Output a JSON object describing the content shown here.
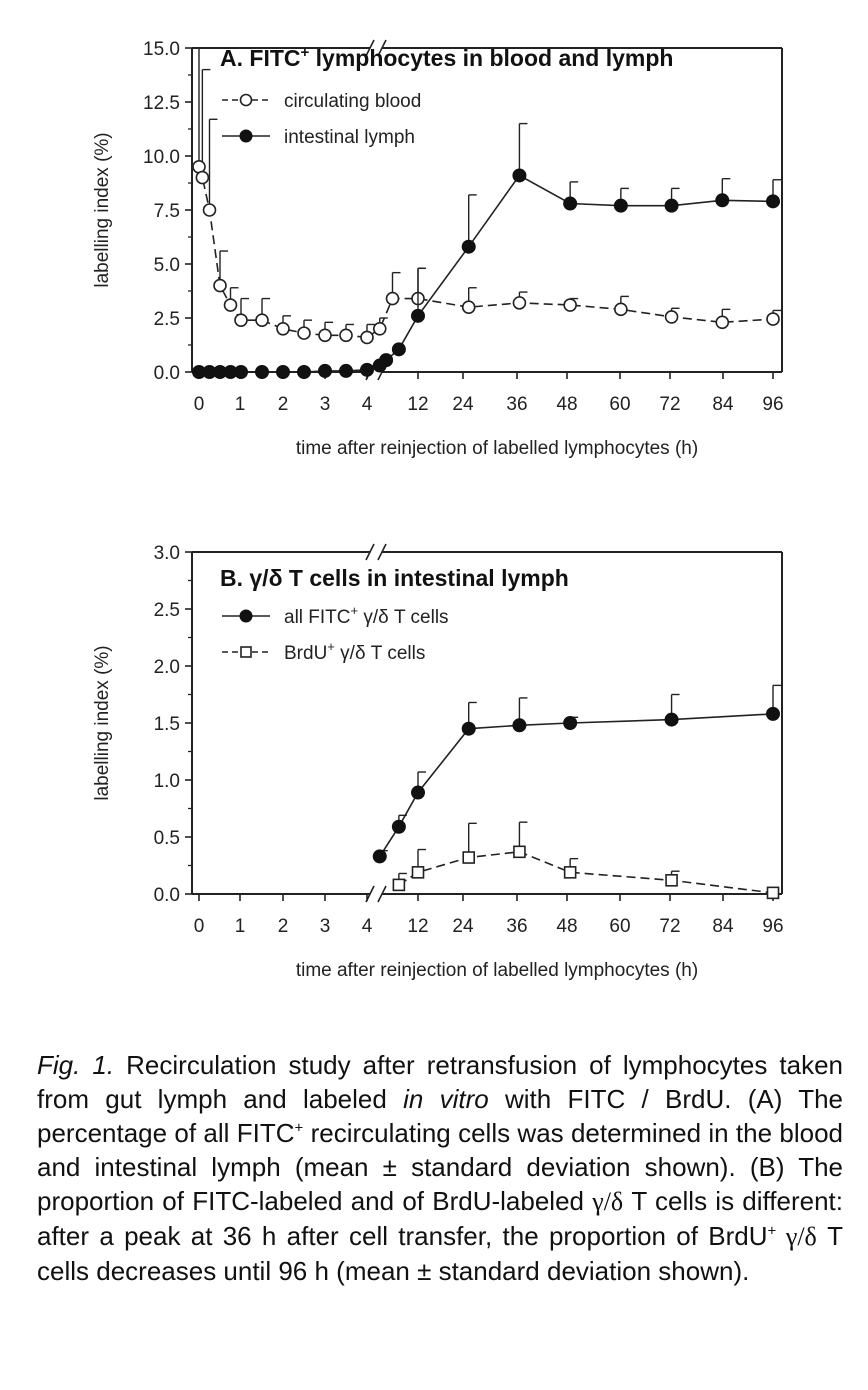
{
  "chart_data": [
    {
      "type": "line",
      "title": "A. FITC",
      "title_sup": "+",
      "title_rest": " lymphocytes in blood and lymph",
      "ylabel": "labelling index (%)",
      "xlabel": "time after reinjection of labelled lymphocytes (h)",
      "ylim": [
        0,
        15.0
      ],
      "yticks": [
        "0.0",
        "2.5",
        "5.0",
        "7.5",
        "10.0",
        "12.5",
        "15.0"
      ],
      "xticks": [
        "0",
        "1",
        "2",
        "3",
        "4",
        "12",
        "24",
        "36",
        "48",
        "60",
        "72",
        "84",
        "96"
      ],
      "x_axis_break": "between 4 and 12 h",
      "legend_position": "top-left",
      "grid": false,
      "series": [
        {
          "name": "circulating blood",
          "marker": "open-circle",
          "line": "dashed",
          "x": [
            0,
            0.08,
            0.25,
            0.5,
            0.75,
            1,
            1.5,
            2,
            2.5,
            3,
            3.5,
            4,
            6,
            8,
            12,
            24,
            36,
            48,
            60,
            72,
            84,
            96
          ],
          "y": [
            9.5,
            9.0,
            7.5,
            4.0,
            3.1,
            2.4,
            2.4,
            2.0,
            1.8,
            1.7,
            1.7,
            1.6,
            2.0,
            3.4,
            3.4,
            3.0,
            3.2,
            3.1,
            2.9,
            2.55,
            2.3,
            2.45
          ],
          "err": [
            5.5,
            5.0,
            4.2,
            1.6,
            0.8,
            1.0,
            1.0,
            0.6,
            0.6,
            0.6,
            0.5,
            0.6,
            0.5,
            1.2,
            1.4,
            0.9,
            0.5,
            0.3,
            0.6,
            0.4,
            0.6,
            0.4
          ]
        },
        {
          "name": "intestinal lymph",
          "marker": "filled-circle",
          "line": "solid",
          "x": [
            0,
            0.25,
            0.5,
            0.75,
            1,
            1.5,
            2,
            2.5,
            3,
            3.5,
            4,
            6,
            7,
            9,
            12,
            24,
            36,
            48,
            60,
            72,
            84,
            96
          ],
          "y": [
            0,
            0,
            0,
            0,
            0,
            0,
            0,
            0,
            0.05,
            0.05,
            0.1,
            0.3,
            0.55,
            1.05,
            2.6,
            5.8,
            9.1,
            7.8,
            7.7,
            7.7,
            7.95,
            7.9
          ],
          "err": [
            0,
            0,
            0,
            0,
            0,
            0,
            0,
            0,
            0,
            0,
            0,
            0,
            0,
            0,
            2.2,
            2.4,
            2.4,
            1.0,
            0.8,
            0.8,
            1.0,
            1.0
          ]
        }
      ]
    },
    {
      "type": "line",
      "title": "B. γ/δ T cells in intestinal lymph",
      "ylabel": "labelling index (%)",
      "xlabel": "time after reinjection of labelled lymphocytes (h)",
      "ylim": [
        0,
        3.0
      ],
      "yticks": [
        "0.0",
        "0.5",
        "1.0",
        "1.5",
        "2.0",
        "2.5",
        "3.0"
      ],
      "xticks": [
        "0",
        "1",
        "2",
        "3",
        "4",
        "12",
        "24",
        "36",
        "48",
        "60",
        "72",
        "84",
        "96"
      ],
      "x_axis_break": "between 4 and 12 h",
      "legend_position": "top-left",
      "grid": false,
      "series": [
        {
          "name": "all FITC+ γ/δ T cells",
          "marker": "filled-circle",
          "line": "solid",
          "x": [
            6,
            9,
            12,
            24,
            36,
            48,
            72,
            96
          ],
          "y": [
            0.33,
            0.59,
            0.89,
            1.45,
            1.48,
            1.5,
            1.53,
            1.58
          ],
          "err": [
            0.05,
            0.1,
            0.18,
            0.23,
            0.24,
            0.05,
            0.22,
            0.25
          ]
        },
        {
          "name": "BrdU+ γ/δ T cells",
          "marker": "open-square",
          "line": "dashed",
          "x": [
            9,
            12,
            24,
            36,
            48,
            72,
            96
          ],
          "y": [
            0.08,
            0.19,
            0.32,
            0.37,
            0.19,
            0.12,
            0.01
          ],
          "err": [
            0.1,
            0.2,
            0.3,
            0.26,
            0.12,
            0.08,
            0.0
          ]
        }
      ]
    }
  ],
  "legend": {
    "a1": "circulating blood",
    "a2": "intestinal lymph",
    "b1_pre": "all FITC",
    "b1_sup": "+",
    "b1_post": " γ/δ T cells",
    "b2_pre": "BrdU",
    "b2_sup": "+",
    "b2_post": " γ/δ T cells"
  },
  "caption": {
    "fig_label": "Fig. 1.",
    "text1": " Recirculation study after retransfusion of lymphocytes taken from gut lymph and labeled ",
    "in_vitro": "in vitro",
    "text2": " with FITC / BrdU. (A) The percentage of all FITC",
    "sup1": "+",
    "text3": " recirculating cells was determined in the blood and intestinal lymph (mean ± standard deviation shown). (B) The proportion of FITC-labeled and of BrdU-labeled ",
    "greek1": "γ/δ",
    "text4": " T cells is different: after a peak at 36 h after cell transfer, the proportion of BrdU",
    "sup2": "+",
    "greek2": " γ/δ",
    "text5": " T cells decreases until 96 h (mean ± standard deviation shown)."
  }
}
